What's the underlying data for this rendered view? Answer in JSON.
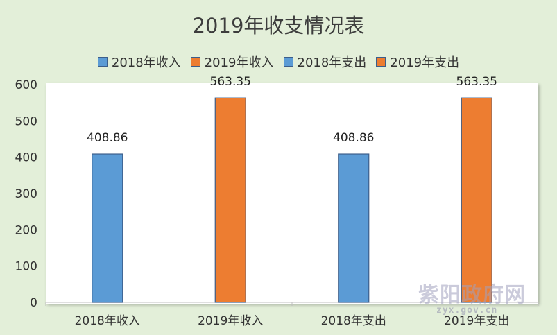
{
  "chart_data": {
    "type": "bar",
    "title": "2019年收支情况表",
    "categories": [
      "2018年收入",
      "2019年收入",
      "2018年支出",
      "2019年支出"
    ],
    "series": [
      {
        "name": "2018年收入",
        "values": [
          408.86,
          null,
          null,
          null
        ],
        "color": "#5b9bd5"
      },
      {
        "name": "2019年收入",
        "values": [
          null,
          563.35,
          null,
          null
        ],
        "color": "#ed7d31"
      },
      {
        "name": "2018年支出",
        "values": [
          null,
          null,
          408.86,
          null
        ],
        "color": "#5b9bd5"
      },
      {
        "name": "2019年支出",
        "values": [
          null,
          null,
          null,
          563.35
        ],
        "color": "#ed7d31"
      }
    ],
    "data_labels": [
      "408.86",
      "563.35",
      "408.86",
      "563.35"
    ],
    "y_ticks": [
      "0",
      "100",
      "200",
      "300",
      "400",
      "500",
      "600"
    ],
    "ylim": [
      0,
      600
    ],
    "grid": false,
    "legend_position": "top",
    "xlabel": "",
    "ylabel": ""
  },
  "watermark": {
    "main": "紫阳政府网",
    "sub": "zyx.gov.cn"
  }
}
